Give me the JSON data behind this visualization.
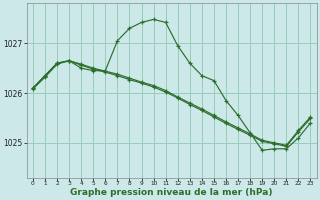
{
  "bg_color": "#cce8e8",
  "grid_color": "#99ccbb",
  "line_color": "#2d6e2d",
  "marker_color": "#2d6e2d",
  "xlabel": "Graphe pression niveau de la mer (hPa)",
  "xlabel_fontsize": 6.5,
  "xticks": [
    0,
    1,
    2,
    3,
    4,
    5,
    6,
    7,
    8,
    9,
    10,
    11,
    12,
    13,
    14,
    15,
    16,
    17,
    18,
    19,
    20,
    21,
    22,
    23
  ],
  "yticks": [
    1025,
    1026,
    1027
  ],
  "ylim": [
    1024.3,
    1027.8
  ],
  "xlim": [
    -0.5,
    23.5
  ],
  "series": [
    {
      "x": [
        0,
        1,
        2,
        3,
        4,
        5,
        6,
        7,
        8,
        9,
        10,
        11,
        12,
        13,
        14,
        15,
        16,
        17,
        18,
        19,
        20,
        21,
        22,
        23
      ],
      "y": [
        1026.1,
        1026.35,
        1026.6,
        1026.65,
        1026.5,
        1026.45,
        1026.45,
        1027.05,
        1027.3,
        1027.42,
        1027.48,
        1027.42,
        1026.95,
        1026.6,
        1026.35,
        1026.25,
        1025.85,
        1025.55,
        1025.2,
        1024.85,
        1024.88,
        1024.88,
        1025.1,
        1025.4
      ]
    },
    {
      "x": [
        0,
        1,
        2,
        3,
        4,
        5,
        6,
        7,
        8,
        9,
        10,
        11,
        12,
        13,
        14,
        15,
        16,
        17,
        18,
        19,
        20,
        21,
        22,
        23
      ],
      "y": [
        1026.1,
        1026.35,
        1026.6,
        1026.65,
        1026.58,
        1026.5,
        1026.44,
        1026.38,
        1026.3,
        1026.22,
        1026.15,
        1026.05,
        1025.92,
        1025.8,
        1025.68,
        1025.55,
        1025.42,
        1025.3,
        1025.18,
        1025.05,
        1025.0,
        1024.95,
        1025.25,
        1025.52
      ]
    },
    {
      "x": [
        0,
        1,
        2,
        3,
        4,
        5,
        6,
        7,
        8,
        9,
        10,
        11,
        12,
        13,
        14,
        15,
        16,
        17,
        18,
        19,
        20,
        21,
        22,
        23
      ],
      "y": [
        1026.08,
        1026.32,
        1026.58,
        1026.65,
        1026.56,
        1026.48,
        1026.42,
        1026.35,
        1026.27,
        1026.2,
        1026.12,
        1026.02,
        1025.9,
        1025.77,
        1025.65,
        1025.52,
        1025.39,
        1025.27,
        1025.15,
        1025.03,
        1024.98,
        1024.93,
        1025.22,
        1025.49
      ]
    }
  ]
}
